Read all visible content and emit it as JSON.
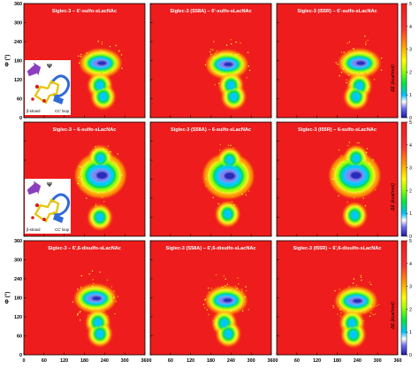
{
  "figure": {
    "background": "#ffffff",
    "colors": {
      "field": "#ee1c1c",
      "frame": "#000000",
      "colormap": [
        "#1a1aa8",
        "#4a4ad8",
        "#7e7ef0",
        "#ffffff",
        "#00bfff",
        "#00e640",
        "#a8ff00",
        "#ffff00",
        "#ffa500",
        "#ff3333",
        "#ee1c1c"
      ],
      "inset_purple": "#8b3fbf",
      "inset_blue": "#2f6bd6",
      "inset_yellow": "#e8c400",
      "inset_red": "#d42020"
    }
  },
  "chart_data": [
    {
      "type": "heatmap",
      "title": "Siglec-3 – 6'-sulfo-sLacNAc",
      "xlabel": "Ψ (°)",
      "ylabel": "Φ (°)",
      "xlim": [
        0,
        360
      ],
      "ylim": [
        0,
        360
      ],
      "xticks": [
        0,
        60,
        120,
        180,
        240,
        300,
        360
      ],
      "yticks": [
        0,
        60,
        120,
        180,
        240,
        300,
        360
      ],
      "colorbar": {
        "label": "ΔE (kcal/mol)",
        "range": [
          0,
          5
        ],
        "ticks": [
          0,
          1,
          2,
          3,
          4,
          5
        ]
      },
      "minima": [
        {
          "psi": 228,
          "phi": 172,
          "depth": "deep"
        },
        {
          "psi": 226,
          "phi": 102,
          "depth": "shallow"
        },
        {
          "psi": 236,
          "phi": 66,
          "depth": "shallow"
        }
      ],
      "inset_labels": [
        "β-strand",
        "CC' loop"
      ],
      "inset_symbol": "Ψ"
    },
    {
      "type": "heatmap",
      "title": "Siglec-3 (S58A) – 6'-sulfo-sLacNAc",
      "xlabel": "Ψ (°)",
      "ylabel": "Φ (°)",
      "xlim": [
        0,
        360
      ],
      "ylim": [
        0,
        360
      ],
      "colorbar": {
        "label": "ΔE (kcal/mol)",
        "range": [
          0,
          5
        ],
        "ticks": [
          0,
          1,
          2,
          3,
          4,
          5
        ]
      },
      "minima": [
        {
          "psi": 228,
          "phi": 168,
          "depth": "deep"
        },
        {
          "psi": 240,
          "phi": 102,
          "depth": "shallow"
        },
        {
          "psi": 248,
          "phi": 66,
          "depth": "shallow"
        }
      ]
    },
    {
      "type": "heatmap",
      "title": "Siglec-3 (I55R) – 6'-sulfo-sLacNAc",
      "xlabel": "Ψ (°)",
      "ylabel": "Φ (°)",
      "xlim": [
        0,
        360
      ],
      "ylim": [
        0,
        360
      ],
      "colorbar": {
        "label": "ΔE (kcal/mol)",
        "range": [
          0,
          5
        ],
        "ticks": [
          0,
          1,
          2,
          3,
          4,
          5
        ]
      },
      "minima": [
        {
          "psi": 246,
          "phi": 172,
          "depth": "deep"
        },
        {
          "psi": 246,
          "phi": 100,
          "depth": "shallow"
        },
        {
          "psi": 236,
          "phi": 66,
          "depth": "shallow"
        }
      ]
    },
    {
      "type": "heatmap",
      "title": "Siglec-3 – 6-sulfo-sLacNAc",
      "xlabel": "Ψ (°)",
      "ylabel": "Φ (°)",
      "xlim": [
        0,
        360
      ],
      "ylim": [
        0,
        360
      ],
      "colorbar": {
        "label": "ΔE (kcal/mol)",
        "range": [
          0,
          5
        ],
        "ticks": [
          0,
          1,
          2,
          3,
          4,
          5
        ]
      },
      "minima": [
        {
          "psi": 228,
          "phi": 192,
          "depth": "deep"
        },
        {
          "psi": 228,
          "phi": 246,
          "depth": "shallow"
        },
        {
          "psi": 226,
          "phi": 60,
          "depth": "shallow"
        }
      ],
      "inset_labels": [
        "β-strand",
        "CC' loop"
      ],
      "inset_symbol": "Ψ"
    },
    {
      "type": "heatmap",
      "title": "Siglec-3 (S58A) – 6-sulfo-sLacNAc",
      "xlabel": "Ψ (°)",
      "ylabel": "Φ (°)",
      "xlim": [
        0,
        360
      ],
      "ylim": [
        0,
        360
      ],
      "colorbar": {
        "label": "ΔE (kcal/mol)",
        "range": [
          0,
          5
        ],
        "ticks": [
          0,
          1,
          2,
          3,
          4,
          5
        ]
      },
      "minima": [
        {
          "psi": 232,
          "phi": 190,
          "depth": "deep"
        },
        {
          "psi": 236,
          "phi": 240,
          "depth": "shallow"
        },
        {
          "psi": 230,
          "phi": 70,
          "depth": "shallow"
        }
      ]
    },
    {
      "type": "heatmap",
      "title": "Siglec-3 (I55R) – 6-sulfo-sLacNAc",
      "xlabel": "Ψ (°)",
      "ylabel": "Φ (°)",
      "xlim": [
        0,
        360
      ],
      "ylim": [
        0,
        360
      ],
      "colorbar": {
        "label": "ΔE (kcal/mol)",
        "range": [
          0,
          5
        ],
        "ticks": [
          0,
          1,
          2,
          3,
          4,
          5
        ]
      },
      "minima": [
        {
          "psi": 232,
          "phi": 192,
          "depth": "deep"
        },
        {
          "psi": 236,
          "phi": 246,
          "depth": "shallow"
        },
        {
          "psi": 232,
          "phi": 66,
          "depth": "shallow"
        }
      ]
    },
    {
      "type": "heatmap",
      "title": "Siglec-3 – 6',6-disulfo-sLacNAc",
      "xlabel": "Ψ (°)",
      "ylabel": "Φ (°)",
      "xlim": [
        0,
        360
      ],
      "ylim": [
        0,
        360
      ],
      "xticks": [
        0,
        60,
        120,
        180,
        240,
        300,
        360
      ],
      "yticks": [
        0,
        60,
        120,
        180,
        240,
        300,
        360
      ],
      "colorbar": {
        "label": "ΔE (kcal/mol)",
        "range": [
          0,
          5
        ],
        "ticks": [
          0,
          1,
          2,
          3,
          4,
          5
        ]
      },
      "minima": [
        {
          "psi": 212,
          "phi": 178,
          "depth": "deep"
        },
        {
          "psi": 220,
          "phi": 102,
          "depth": "shallow"
        },
        {
          "psi": 226,
          "phi": 66,
          "depth": "shallow"
        }
      ]
    },
    {
      "type": "heatmap",
      "title": "Siglec-3 (S58A) – 6',6-disulfo-sLacNAc",
      "xlabel": "Ψ (°)",
      "ylabel": "Φ (°)",
      "xlim": [
        0,
        360
      ],
      "ylim": [
        0,
        360
      ],
      "xticks": [
        0,
        60,
        120,
        180,
        240,
        300,
        360
      ],
      "colorbar": {
        "label": "ΔE (kcal/mol)",
        "range": [
          0,
          5
        ],
        "ticks": [
          0,
          1,
          2,
          3,
          4,
          5
        ]
      },
      "minima": [
        {
          "psi": 226,
          "phi": 172,
          "depth": "deep"
        },
        {
          "psi": 220,
          "phi": 100,
          "depth": "shallow"
        },
        {
          "psi": 232,
          "phi": 66,
          "depth": "shallow"
        }
      ]
    },
    {
      "type": "heatmap",
      "title": "Siglec-3 (I55R) – 6',6-disulfo-sLacNAc",
      "xlabel": "Ψ (°)",
      "ylabel": "Φ (°)",
      "xlim": [
        0,
        360
      ],
      "ylim": [
        0,
        360
      ],
      "xticks": [
        0,
        60,
        120,
        180,
        240,
        300,
        360
      ],
      "colorbar": {
        "label": "ΔE (kcal/mol)",
        "range": [
          0,
          5
        ],
        "ticks": [
          0,
          1,
          2,
          3,
          4,
          5
        ]
      },
      "minima": [
        {
          "psi": 236,
          "phi": 170,
          "depth": "deep"
        },
        {
          "psi": 224,
          "phi": 100,
          "depth": "shallow"
        },
        {
          "psi": 228,
          "phi": 64,
          "depth": "shallow"
        }
      ]
    }
  ]
}
